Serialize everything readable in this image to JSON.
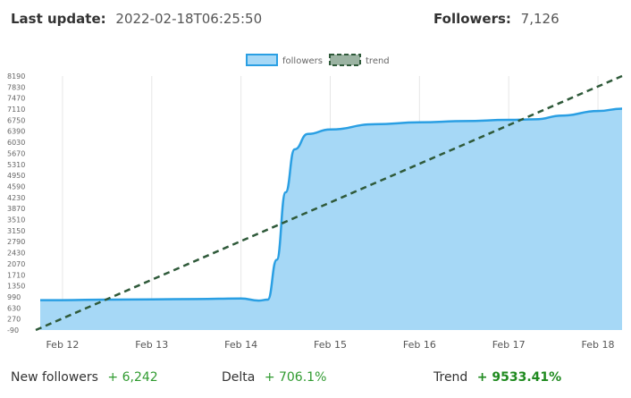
{
  "header": {
    "last_update_label": "Last update:",
    "last_update_value": "2022-02-18T06:25:50",
    "followers_label": "Followers:",
    "followers_value": "7,126"
  },
  "footer": {
    "new_followers_label": "New followers",
    "new_followers_value": "+ 6,242",
    "delta_label": "Delta",
    "delta_value": "+ 706.1%",
    "trend_label": "Trend",
    "trend_value": "+ 9533.41%"
  },
  "colors": {
    "followers_fill": "#a6d8f6",
    "followers_line": "#2a9fe3",
    "trend_line": "#2f5a3a",
    "trend_legend_fill": "#9bb3a2",
    "grid": "#e6e6e6",
    "positive_text": "#2f9a2f"
  },
  "chart_data": {
    "type": "area",
    "y_ticks": [
      "8190",
      "7830",
      "7470",
      "7110",
      "6750",
      "6390",
      "6030",
      "5670",
      "5310",
      "4950",
      "4590",
      "4230",
      "3870",
      "3510",
      "3150",
      "2790",
      "2430",
      "2070",
      "1710",
      "1350",
      "990",
      "630",
      "270",
      "-90"
    ],
    "ylim": [
      -90,
      8190
    ],
    "x_ticks": [
      "Feb 12",
      "Feb 13",
      "Feb 14",
      "Feb 15",
      "Feb 16",
      "Feb 17",
      "Feb 18"
    ],
    "legend": [
      "followers",
      "trend"
    ],
    "legend_position": "top-center",
    "grid": "vertical",
    "series": [
      {
        "name": "followers",
        "points": [
          [
            11.75,
            884
          ],
          [
            12.0,
            884
          ],
          [
            12.5,
            900
          ],
          [
            13.0,
            910
          ],
          [
            13.5,
            920
          ],
          [
            14.0,
            940
          ],
          [
            14.2,
            870
          ],
          [
            14.3,
            900
          ],
          [
            14.4,
            2200
          ],
          [
            14.5,
            4400
          ],
          [
            14.6,
            5800
          ],
          [
            14.75,
            6300
          ],
          [
            15.0,
            6450
          ],
          [
            15.5,
            6620
          ],
          [
            16.0,
            6680
          ],
          [
            16.5,
            6720
          ],
          [
            17.0,
            6760
          ],
          [
            17.3,
            6780
          ],
          [
            17.6,
            6900
          ],
          [
            18.0,
            7050
          ],
          [
            18.27,
            7126
          ]
        ]
      },
      {
        "name": "trend",
        "points": [
          [
            11.7,
            -90
          ],
          [
            18.27,
            8190
          ]
        ]
      }
    ]
  }
}
